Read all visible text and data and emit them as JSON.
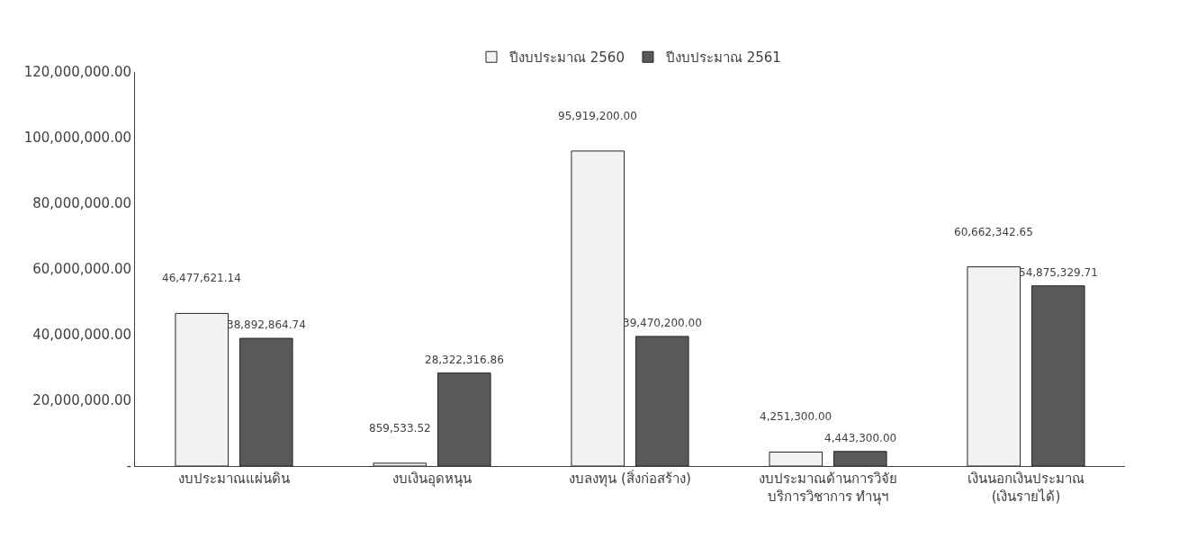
{
  "chart_data": {
    "type": "bar",
    "categories": [
      "งบประมาณแผ่นดิน",
      "งบเงินอุดหนุน",
      "งบลงทุน (สิ่งก่อสร้าง)",
      "งบประมาณด้านการวิจัย\nบริการวิชาการ ทำนุฯ",
      "เงินนอกเงินประมาณ\n(เงินรายได้)"
    ],
    "series": [
      {
        "name": "ปีงบประมาณ 2560",
        "color": "#f2f2f2",
        "values": [
          46477621.14,
          859533.52,
          95919200.0,
          4251300.0,
          60662342.65
        ],
        "value_labels": [
          "46,477,621.14",
          "859,533.52",
          "95,919,200.00",
          "4,251,300.00",
          "60,662,342.65"
        ]
      },
      {
        "name": "ปีงบประมาณ 2561",
        "color": "#595959",
        "values": [
          38892864.74,
          28322316.86,
          39470200.0,
          4443300.0,
          54875329.71
        ],
        "value_labels": [
          "38,892,864.74",
          "28,322,316.86",
          "39,470,200.00",
          "4,443,300.00",
          "54,875,329.71"
        ]
      }
    ],
    "ylim": [
      0,
      120000000
    ],
    "yticks": [
      {
        "value": 0,
        "label": "-"
      },
      {
        "value": 20000000,
        "label": "20,000,000.00"
      },
      {
        "value": 40000000,
        "label": "40,000,000.00"
      },
      {
        "value": 60000000,
        "label": "60,000,000.00"
      },
      {
        "value": 80000000,
        "label": "80,000,000.00"
      },
      {
        "value": 100000000,
        "label": "100,000,000.00"
      },
      {
        "value": 120000000,
        "label": "120,000,000.00"
      }
    ],
    "legend": "top"
  }
}
